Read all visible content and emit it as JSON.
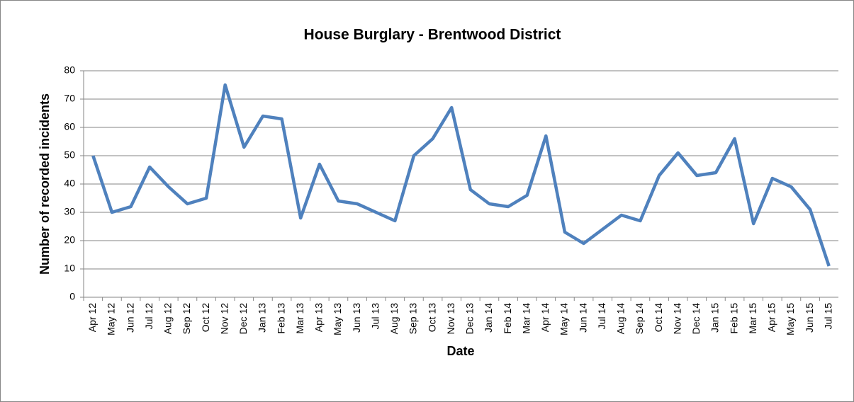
{
  "chart_data": {
    "type": "line",
    "title": "House Burglary - Brentwood District",
    "x_label": "Date",
    "y_label": "Number of recorded incidents",
    "categories": [
      "Apr 12",
      "May 12",
      "Jun 12",
      "Jul 12",
      "Aug 12",
      "Sep 12",
      "Oct 12",
      "Nov 12",
      "Dec 12",
      "Jan 13",
      "Feb 13",
      "Mar 13",
      "Apr 13",
      "May 13",
      "Jun 13",
      "Jul 13",
      "Aug 13",
      "Sep 13",
      "Oct 13",
      "Nov 13",
      "Dec 13",
      "Jan 14",
      "Feb 14",
      "Mar 14",
      "Apr 14",
      "May 14",
      "Jun 14",
      "Jul 14",
      "Aug 14",
      "Sep 14",
      "Oct 14",
      "Nov 14",
      "Dec 14",
      "Jan 15",
      "Feb 15",
      "Mar 15",
      "Apr 15",
      "May 15",
      "Jun 15",
      "Jul 15"
    ],
    "values": [
      50,
      30,
      32,
      46,
      39,
      33,
      35,
      75,
      53,
      64,
      63,
      28,
      47,
      34,
      33,
      30,
      27,
      50,
      56,
      67,
      38,
      33,
      32,
      36,
      57,
      23,
      19,
      24,
      29,
      27,
      43,
      51,
      43,
      44,
      56,
      26,
      42,
      39,
      31,
      11
    ],
    "color": "#4f81bd",
    "ylim": [
      0,
      80
    ],
    "yticks": [
      0,
      10,
      20,
      30,
      40,
      50,
      60,
      70,
      80
    ],
    "grid": true
  }
}
